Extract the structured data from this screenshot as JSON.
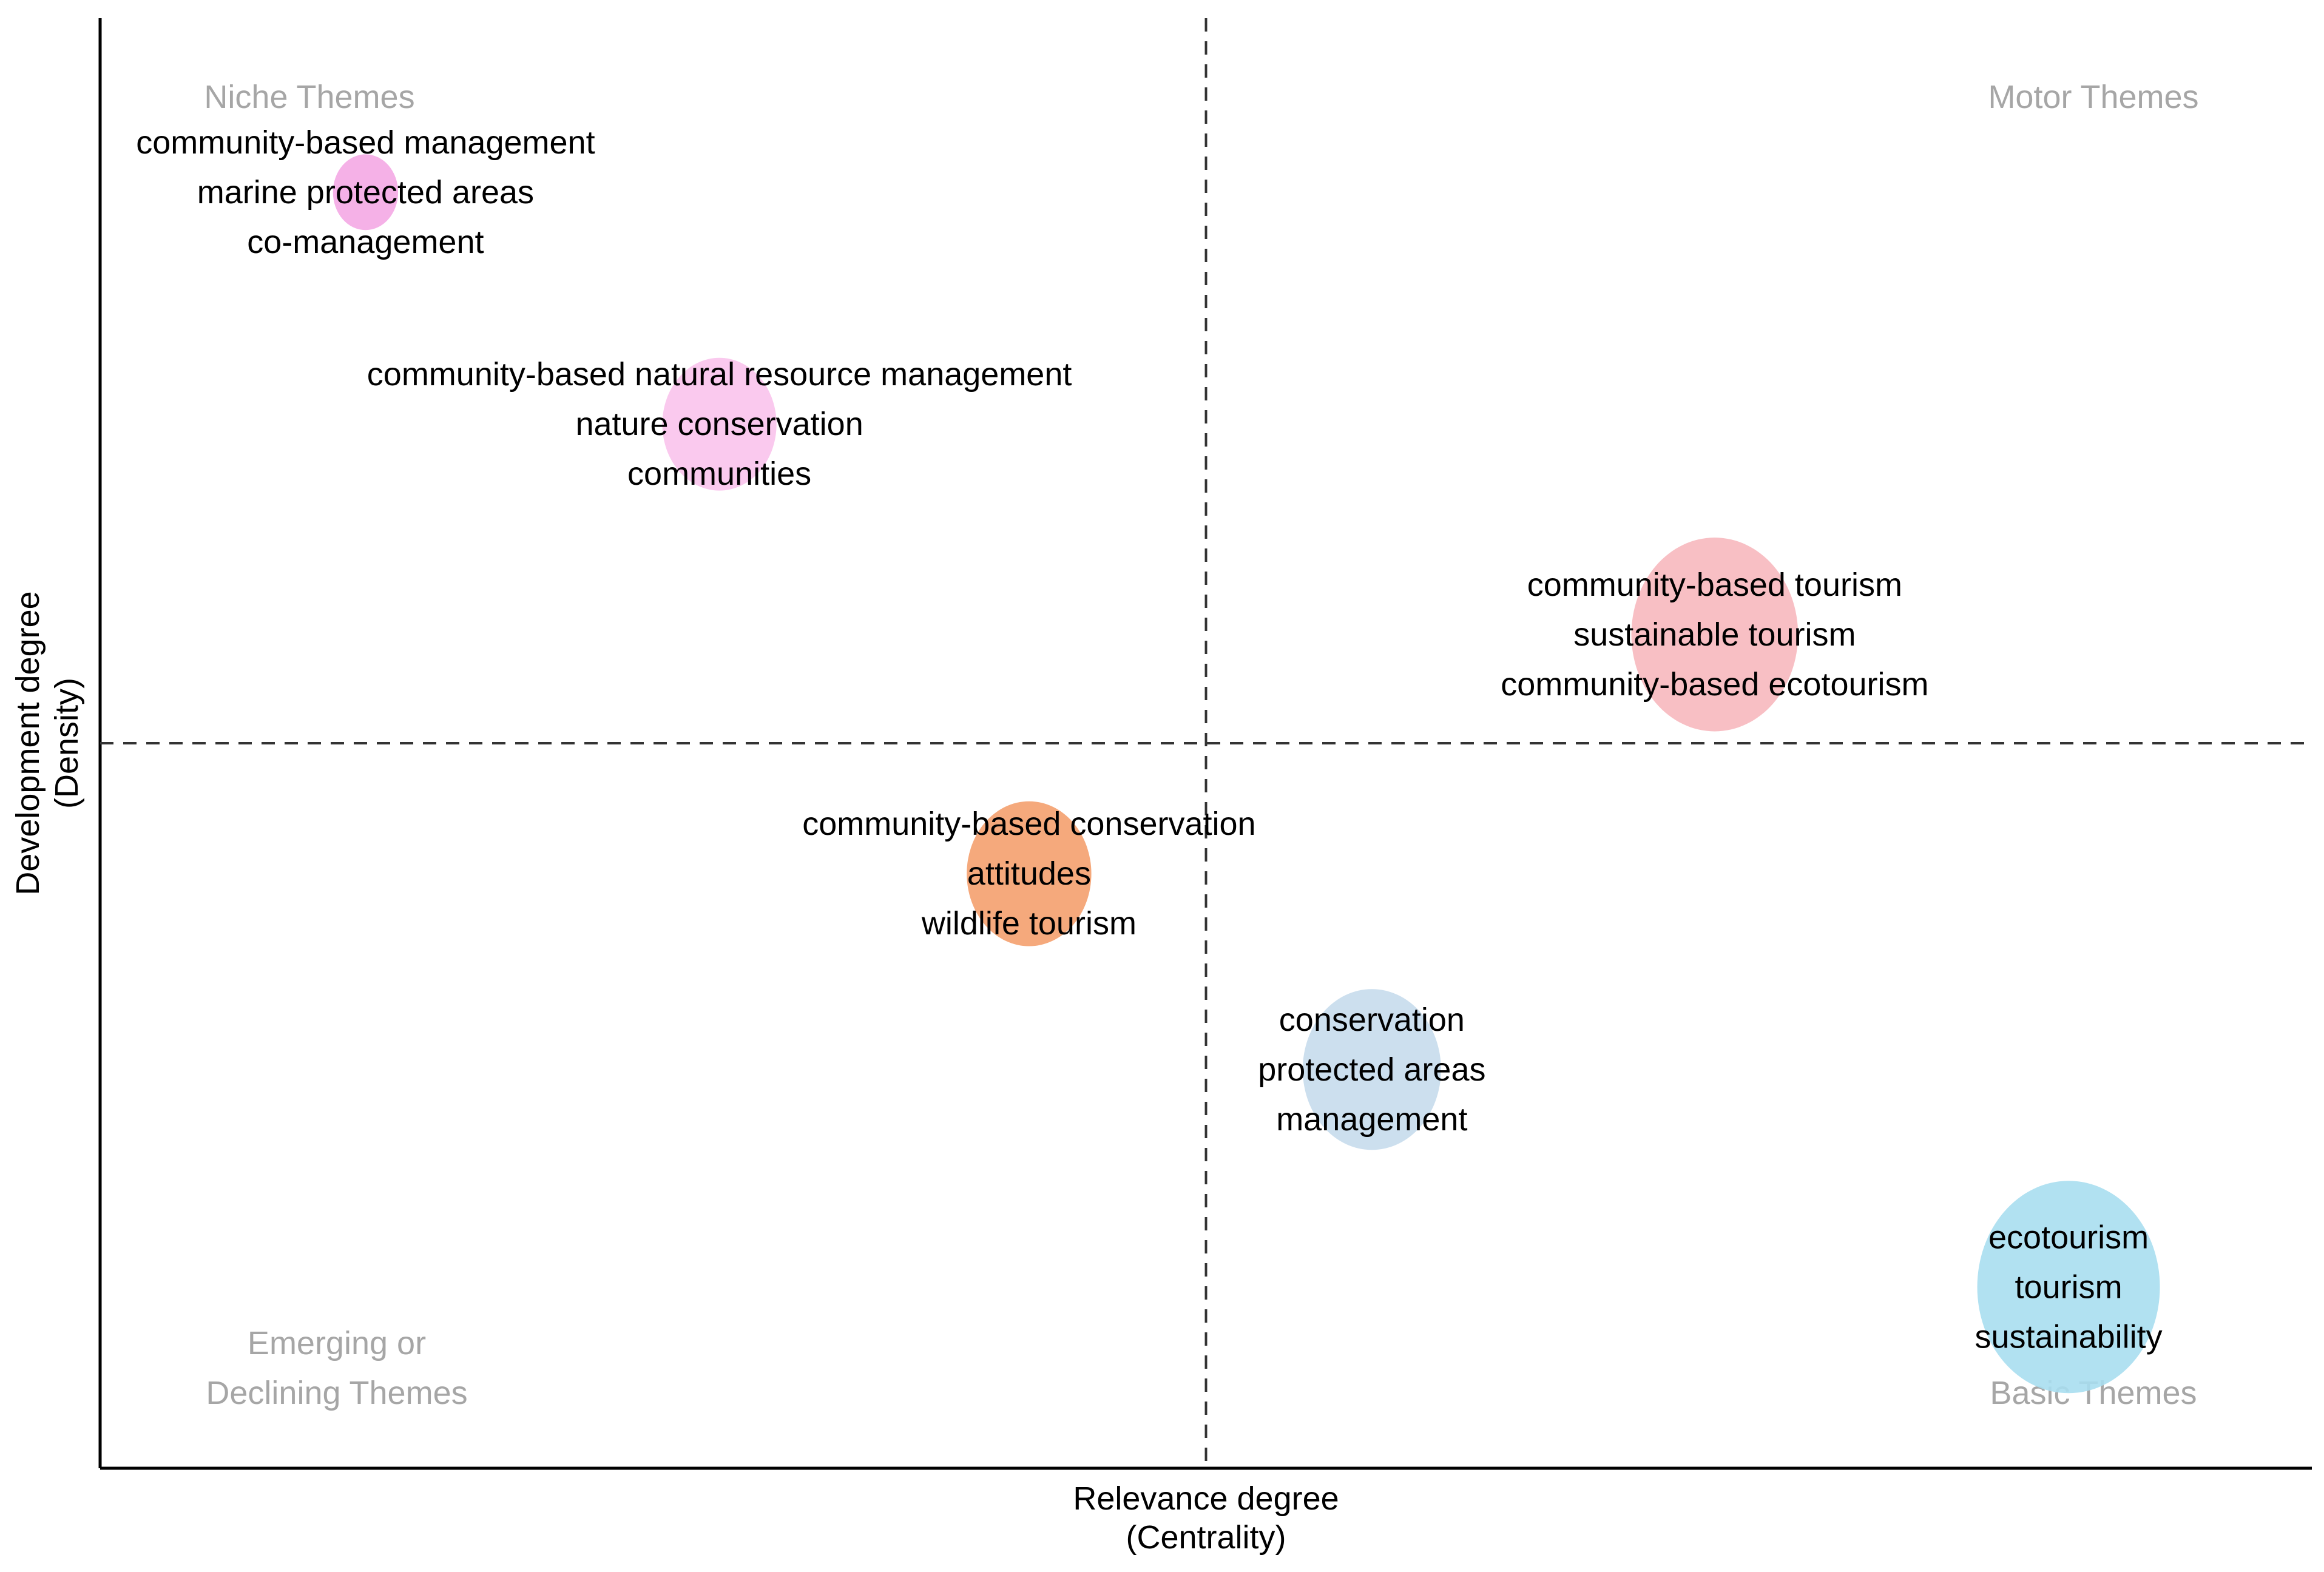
{
  "chart_data": {
    "type": "scatter",
    "subtype": "thematic-map",
    "xlabel": [
      "Relevance degree",
      "(Centrality)"
    ],
    "ylabel": [
      "Development degree",
      "(Density)"
    ],
    "x_divider": 0.0,
    "y_divider": 0.0,
    "xlim": [
      -1.0,
      1.0
    ],
    "ylim": [
      -1.0,
      1.0
    ],
    "grid": false,
    "quadrants": [
      {
        "id": "niche",
        "lines": [
          "Niche Themes"
        ],
        "corner": "top-left"
      },
      {
        "id": "motor",
        "lines": [
          "Motor Themes"
        ],
        "corner": "top-right"
      },
      {
        "id": "emerging",
        "lines": [
          "Emerging or",
          "Declining Themes"
        ],
        "corner": "bottom-left"
      },
      {
        "id": "basic",
        "lines": [
          "Basic Themes"
        ],
        "corner": "bottom-right"
      }
    ],
    "clusters": [
      {
        "id": "cluster-cbm",
        "x": -0.76,
        "y": 0.76,
        "size": 0.05,
        "color": "#f4a9e4",
        "labels": [
          "community-based management",
          "marine protected areas",
          "co-management"
        ]
      },
      {
        "id": "cluster-cbnrm",
        "x": -0.44,
        "y": 0.44,
        "size": 0.3,
        "color": "#f9c3ec",
        "labels": [
          "community-based natural resource management",
          "nature conservation",
          "communities"
        ]
      },
      {
        "id": "cluster-cbt",
        "x": 0.46,
        "y": 0.15,
        "size": 0.8,
        "color": "#f7b8be",
        "labels": [
          "community-based tourism",
          "sustainable tourism",
          "community-based ecotourism"
        ]
      },
      {
        "id": "cluster-cbc",
        "x": -0.16,
        "y": -0.18,
        "size": 0.38,
        "color": "#f4a06e",
        "labels": [
          "community-based conservation",
          "attitudes",
          "wildlife tourism"
        ]
      },
      {
        "id": "cluster-conservation",
        "x": 0.15,
        "y": -0.45,
        "size": 0.5,
        "color": "#c6dcec",
        "labels": [
          "conservation",
          "protected areas",
          "management"
        ]
      },
      {
        "id": "cluster-ecotourism",
        "x": 0.78,
        "y": -0.75,
        "size": 1.0,
        "color": "#a8def0",
        "labels": [
          "ecotourism",
          "tourism",
          "sustainability"
        ]
      }
    ]
  }
}
